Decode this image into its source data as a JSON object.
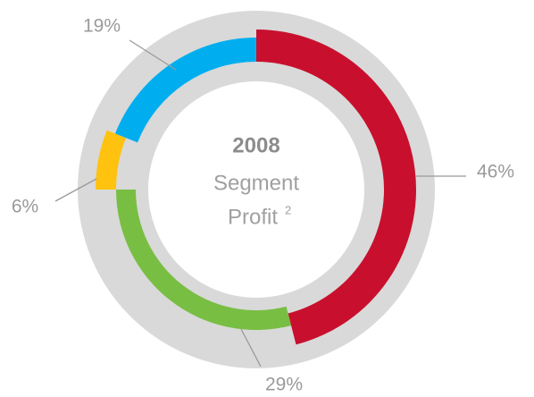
{
  "chart_data": {
    "type": "pie",
    "title": "2008",
    "subtitle": [
      "Segment",
      "Profit"
    ],
    "footnote_mark": "2",
    "values": [
      46,
      29,
      6,
      19
    ],
    "value_labels": [
      "46%",
      "29%",
      "6%",
      "19%"
    ],
    "colors": [
      "#c8102e",
      "#78be43",
      "#ffc20e",
      "#00aeef"
    ],
    "background_color": "#d9d9d9"
  }
}
